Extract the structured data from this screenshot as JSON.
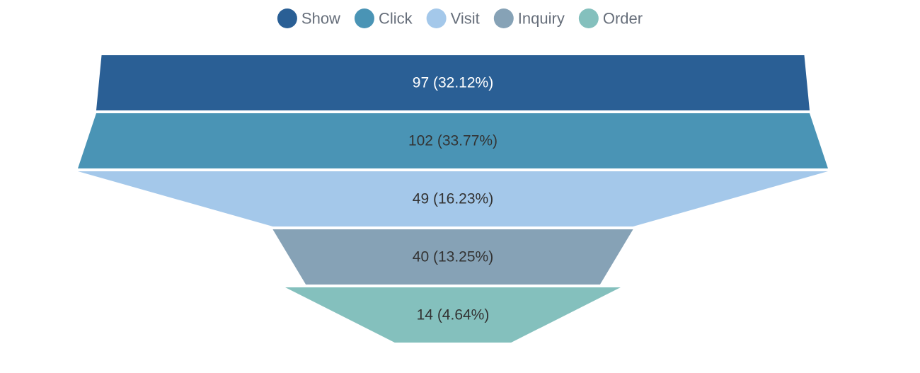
{
  "chart_data": {
    "type": "funnel",
    "legend_position": "top-center",
    "stages": [
      {
        "name": "Show",
        "value": 97,
        "percent": "32.12%",
        "label": "97 (32.12%)",
        "color": "#2a5f95",
        "label_color": "#ffffff"
      },
      {
        "name": "Click",
        "value": 102,
        "percent": "33.77%",
        "label": "102 (33.77%)",
        "color": "#4a94b5",
        "label_color": "#333333"
      },
      {
        "name": "Visit",
        "value": 49,
        "percent": "16.23%",
        "label": "49 (16.23%)",
        "color": "#a4c8ea",
        "label_color": "#333333"
      },
      {
        "name": "Inquiry",
        "value": 40,
        "percent": "13.25%",
        "label": "40 (13.25%)",
        "color": "#86a2b6",
        "label_color": "#333333"
      },
      {
        "name": "Order",
        "value": 14,
        "percent": "4.64%",
        "label": "14 (4.64%)",
        "color": "#84c0bd",
        "label_color": "#333333"
      }
    ]
  }
}
